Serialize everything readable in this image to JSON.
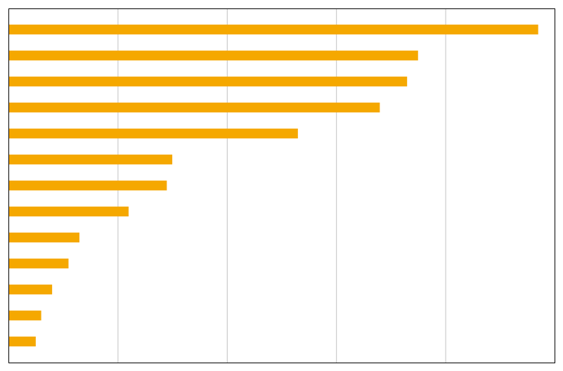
{
  "chart_data": {
    "type": "bar",
    "orientation": "horizontal",
    "categories": [
      null,
      null,
      null,
      null,
      null,
      null,
      null,
      null,
      null,
      null,
      null,
      null,
      null
    ],
    "values": [
      97,
      75,
      73,
      68,
      53,
      30,
      29,
      22,
      13,
      11,
      8,
      6,
      5
    ],
    "color": "#F5A800",
    "xlim": [
      0,
      100
    ],
    "xticks": [
      20,
      40,
      60,
      80,
      100
    ],
    "grid": true,
    "tick_labels": false
  }
}
